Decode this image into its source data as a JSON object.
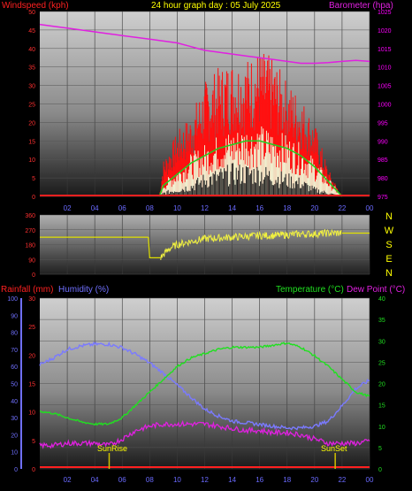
{
  "header": {
    "left_label": "Windspeed (kph)",
    "title": "24 hour graph day : 05 July 2025",
    "right_label": "Barometer (hpa)"
  },
  "colors": {
    "wind_label": "#ff2020",
    "title": "#ffff00",
    "baro": "#e020e0",
    "rain": "#ff2020",
    "humidity": "#7070ff",
    "temperature": "#20e020",
    "dewpoint": "#e020e0",
    "direction": "#ffff00",
    "axis_text": "#ff3030",
    "baro_axis_text": "#ff00ff",
    "temp_axis_text": "#20e020"
  },
  "time_ticks": [
    "02",
    "04",
    "06",
    "08",
    "10",
    "12",
    "14",
    "16",
    "18",
    "20",
    "22",
    "00"
  ],
  "wind_axis": [
    "0",
    "5",
    "10",
    "15",
    "20",
    "25",
    "30",
    "35",
    "40",
    "45",
    "50"
  ],
  "baro_axis": [
    "975",
    "980",
    "985",
    "990",
    "995",
    "1000",
    "1005",
    "1010",
    "1015",
    "1020",
    "1025"
  ],
  "dir_axis": [
    "360",
    "270",
    "180",
    "90",
    "0"
  ],
  "dir_labels": [
    "N",
    "W",
    "S",
    "E",
    "N"
  ],
  "bottom_header": {
    "rain_label": "Rainfall (mm)",
    "humidity_label": "Humidity (%)",
    "temp_label": "Temperature (°C)",
    "dew_label": "Dew Point (°C)"
  },
  "rain_axis": [
    "0",
    "5",
    "10",
    "15",
    "20",
    "25",
    "30"
  ],
  "hum_axis": [
    "0",
    "10",
    "20",
    "30",
    "40",
    "50",
    "60",
    "70",
    "80",
    "90",
    "100"
  ],
  "temp_axis": [
    "0",
    "5",
    "10",
    "15",
    "20",
    "25",
    "30",
    "35",
    "40"
  ],
  "sun": {
    "rise_label": "SunRise",
    "set_label": "SunSet"
  },
  "chart_data": [
    {
      "type": "line",
      "title": "24 hour graph day : 05 July 2025",
      "x_unit_hours": [
        0,
        24
      ],
      "ylabel": "Windspeed (kph)",
      "ylim": [
        0,
        50
      ],
      "y2label": "Barometer (hpa)",
      "y2lim": [
        975,
        1025
      ],
      "series": [
        {
          "name": "Barometer (hpa)",
          "x": [
            0,
            1,
            2,
            3,
            4,
            5,
            6,
            7,
            8,
            9,
            10,
            11,
            12,
            13,
            14,
            15,
            16,
            17,
            18,
            19,
            20,
            21,
            22,
            23,
            24
          ],
          "values": [
            1021.5,
            1021,
            1020.5,
            1020,
            1019.5,
            1019,
            1018.5,
            1018,
            1017.5,
            1017,
            1016.5,
            1015.5,
            1014.5,
            1014,
            1013.5,
            1013,
            1012.5,
            1012,
            1011.5,
            1011,
            1011,
            1011.2,
            1011.5,
            1011.8,
            1011.5
          ]
        },
        {
          "name": "Wind gust",
          "x": [
            8.7,
            9,
            10,
            11,
            12,
            13,
            14,
            15,
            16,
            17,
            18,
            19,
            20,
            21,
            22
          ],
          "values": [
            0,
            8,
            14,
            18,
            25,
            28,
            30,
            30,
            32,
            30,
            25,
            22,
            16,
            6,
            0
          ]
        },
        {
          "name": "Wind average",
          "x": [
            8.7,
            9,
            10,
            11,
            12,
            13,
            14,
            15,
            16,
            17,
            18,
            19,
            20,
            21,
            22
          ],
          "values": [
            0,
            3,
            6,
            9,
            11,
            13,
            14,
            15,
            15,
            14,
            13,
            11,
            8,
            4,
            0
          ]
        },
        {
          "name": "Wind minimum",
          "x": [
            8.7,
            9,
            10,
            11,
            12,
            13,
            14,
            15,
            16,
            17,
            18,
            19,
            20,
            21,
            22
          ],
          "values": [
            0,
            1,
            2,
            3,
            5,
            6,
            7,
            7,
            7,
            6,
            5,
            4,
            2,
            1,
            0
          ]
        }
      ]
    },
    {
      "type": "line",
      "ylabel": "Wind direction",
      "ylim": [
        0,
        360
      ],
      "series": [
        {
          "name": "Direction",
          "x": [
            0,
            7.9,
            8,
            8.8,
            9,
            9.5,
            10,
            11,
            12,
            13,
            14,
            15,
            16,
            17,
            18,
            19,
            20,
            21,
            22,
            24
          ],
          "values": [
            225,
            225,
            100,
            100,
            120,
            160,
            180,
            200,
            215,
            220,
            225,
            230,
            235,
            235,
            240,
            245,
            245,
            250,
            250,
            250
          ]
        }
      ]
    },
    {
      "type": "line",
      "ylabel": "Humidity (%)",
      "ylim": [
        0,
        100
      ],
      "y2label": "Temperature (°C)",
      "y2lim": [
        0,
        40
      ],
      "series": [
        {
          "name": "Humidity (%)",
          "x": [
            0,
            1,
            2,
            3,
            4,
            5,
            6,
            7,
            8,
            9,
            10,
            11,
            12,
            13,
            14,
            15,
            16,
            17,
            18,
            19,
            20,
            21,
            22,
            23,
            24
          ],
          "values": [
            61,
            65,
            70,
            72,
            73,
            73,
            71,
            67,
            62,
            56,
            49,
            42,
            35,
            31,
            28,
            27,
            26,
            25,
            24,
            24,
            25,
            28,
            37,
            47,
            52
          ]
        },
        {
          "name": "Temperature (°C)",
          "x": [
            0,
            1,
            2,
            3,
            4,
            5,
            6,
            7,
            8,
            9,
            10,
            11,
            12,
            13,
            14,
            15,
            16,
            17,
            18,
            19,
            20,
            21,
            22,
            23,
            24
          ],
          "values": [
            13.5,
            13,
            12,
            11,
            10.5,
            10.5,
            12,
            15,
            18,
            21,
            24,
            26,
            27,
            28,
            28.5,
            28.5,
            28.5,
            29,
            29.5,
            28.5,
            26.5,
            24,
            21,
            18,
            17
          ]
        },
        {
          "name": "Dew Point (°C)",
          "x": [
            0,
            1,
            2,
            3,
            4,
            5,
            6,
            7,
            8,
            9,
            10,
            11,
            12,
            13,
            14,
            15,
            16,
            17,
            18,
            19,
            20,
            21,
            22,
            23,
            24
          ],
          "values": [
            5.5,
            5.5,
            6,
            6,
            6,
            5.5,
            7,
            9,
            10,
            10.5,
            10.5,
            10.5,
            10.5,
            10,
            9.5,
            9,
            9,
            8.5,
            8.5,
            8,
            7,
            6,
            6,
            6,
            6.5
          ]
        },
        {
          "name": "Rainfall (mm)",
          "x": [
            0,
            24
          ],
          "values": [
            0,
            0
          ]
        }
      ]
    }
  ]
}
